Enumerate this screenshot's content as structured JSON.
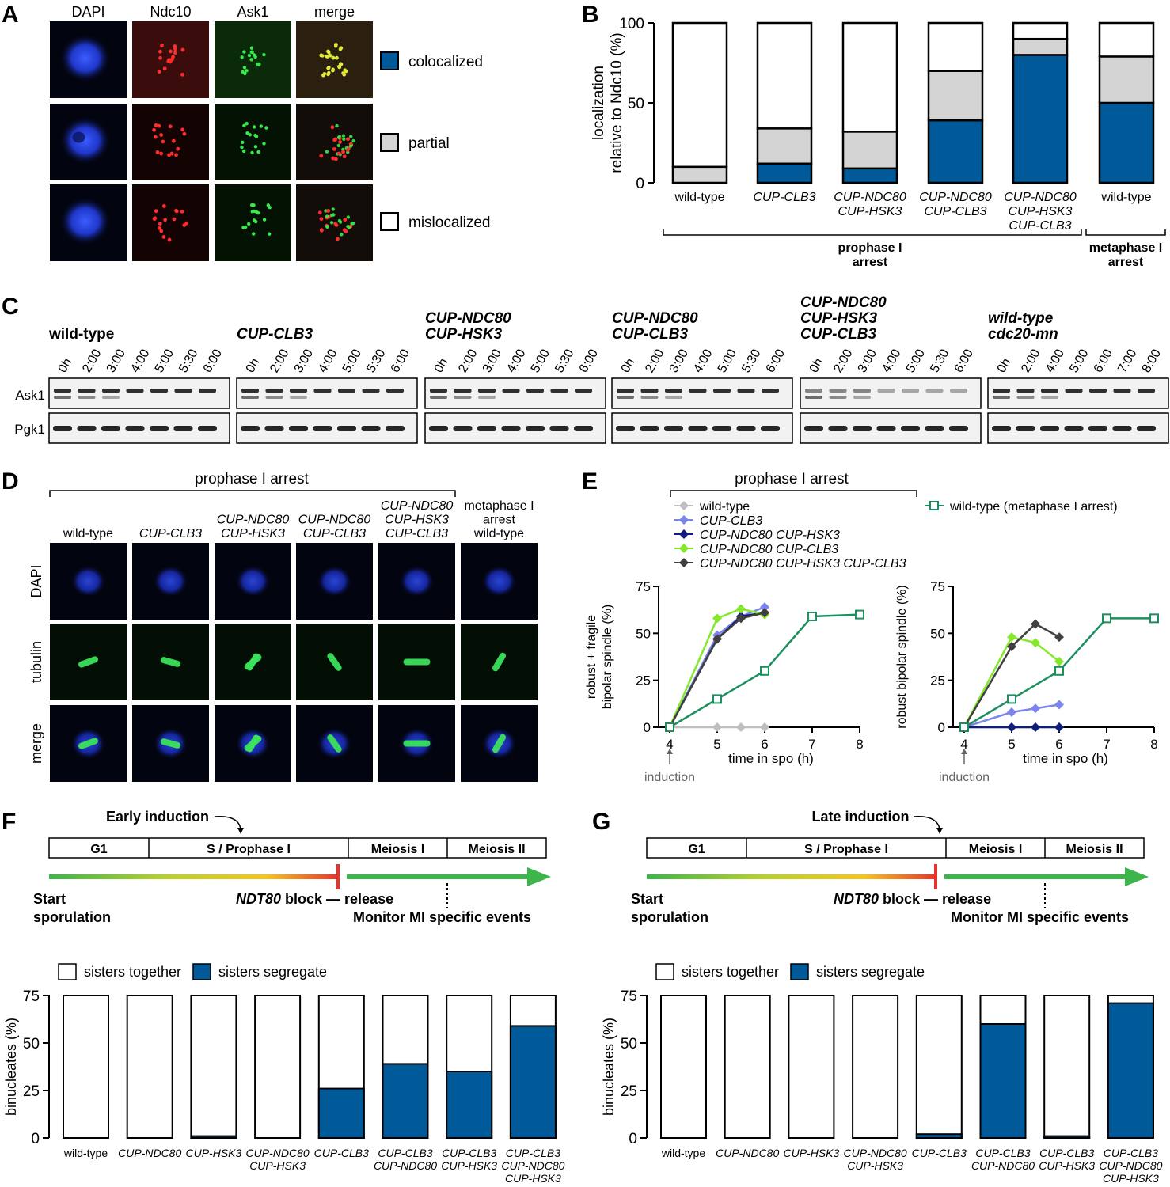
{
  "panels": {
    "A": "A",
    "B": "B",
    "C": "C",
    "D": "D",
    "E": "E",
    "F": "F",
    "G": "G"
  },
  "panelA": {
    "channels": [
      "DAPI",
      "Ndc10",
      "Ask1",
      "merge"
    ],
    "legend": [
      {
        "label": "colocalized",
        "color": "#005a9a"
      },
      {
        "label": "partial",
        "color": "#d4d4d4"
      },
      {
        "label": "mislocalized",
        "color": "#ffffff"
      }
    ]
  },
  "panelB": {
    "ylabel1": "localization",
    "ylabel2": "relative to Ndc10 (%)",
    "group1": [
      "prophase I",
      "arrest"
    ],
    "group2": [
      "metaphase I",
      "arrest"
    ]
  },
  "panelC": {
    "groups": [
      {
        "title": [
          "wild-type"
        ],
        "italic": false,
        "times": [
          "0h",
          "2:00",
          "3:00",
          "4:00",
          "5:00",
          "5:30",
          "6:00"
        ]
      },
      {
        "title": [
          "CUP-CLB3"
        ],
        "italic": true,
        "times": [
          "0h",
          "2:00",
          "3:00",
          "4:00",
          "5:00",
          "5:30",
          "6:00"
        ]
      },
      {
        "title": [
          "CUP-NDC80",
          "CUP-HSK3"
        ],
        "italic": true,
        "times": [
          "0h",
          "2:00",
          "3:00",
          "4:00",
          "5:00",
          "5:30",
          "6:00"
        ]
      },
      {
        "title": [
          "CUP-NDC80",
          "CUP-CLB3"
        ],
        "italic": true,
        "times": [
          "0h",
          "2:00",
          "3:00",
          "4:00",
          "5:00",
          "5:30",
          "6:00"
        ]
      },
      {
        "title": [
          "CUP-NDC80",
          "CUP-HSK3",
          "CUP-CLB3"
        ],
        "italic": true,
        "times": [
          "0h",
          "2:00",
          "3:00",
          "4:00",
          "5:00",
          "5:30",
          "6:00"
        ]
      },
      {
        "title": [
          "wild-type",
          "cdc20-mn"
        ],
        "italic": true,
        "times": [
          "0h",
          "2:00",
          "4:00",
          "5:00",
          "6:00",
          "7:00",
          "8:00"
        ]
      }
    ],
    "rows": [
      "Ask1",
      "Pgk1"
    ]
  },
  "panelD": {
    "header": "prophase I arrest",
    "columns": [
      {
        "lines": [
          "wild-type"
        ],
        "italic": false
      },
      {
        "lines": [
          "CUP-CLB3"
        ],
        "italic": true
      },
      {
        "lines": [
          "CUP-NDC80",
          "CUP-HSK3"
        ],
        "italic": true
      },
      {
        "lines": [
          "CUP-NDC80",
          "CUP-CLB3"
        ],
        "italic": true
      },
      {
        "lines": [
          "CUP-NDC80",
          "CUP-HSK3",
          "CUP-CLB3"
        ],
        "italic": true
      },
      {
        "lines": [
          "metaphase I",
          "arrest",
          "wild-type"
        ],
        "italic": false
      }
    ],
    "rows": [
      "DAPI",
      "tubulin",
      "merge"
    ]
  },
  "panelE": {
    "header": "prophase I arrest",
    "legend": [
      {
        "label": "wild-type",
        "italic": false
      },
      {
        "label": "CUP-CLB3",
        "italic": true
      },
      {
        "label": "CUP-NDC80 CUP-HSK3",
        "italic": true
      },
      {
        "label": "CUP-NDC80 CUP-CLB3",
        "italic": true
      },
      {
        "label": "CUP-NDC80 CUP-HSK3 CUP-CLB3",
        "italic": true
      },
      {
        "label": "wild-type (metaphase I arrest)",
        "italic": false
      }
    ],
    "induction": "induction",
    "xlabel": "time in spo (h)"
  },
  "timelines": {
    "F": {
      "induction": "Early induction"
    },
    "G": {
      "induction": "Late induction"
    },
    "phases": [
      "G1",
      "S / Prophase I",
      "Meiosis I",
      "Meiosis II"
    ],
    "start": [
      "Start",
      "sporulation"
    ],
    "block_gene": "NDT80",
    "block_rest": " block — release",
    "monitor": "Monitor MI specific events",
    "legend": [
      {
        "label": "sisters together",
        "color": "#ffffff"
      },
      {
        "label": "sisters segregate",
        "color": "#005a9a"
      }
    ]
  },
  "chart_data": [
    {
      "type": "bar",
      "stacked": true,
      "panel": "B",
      "categories": [
        [
          "wild-type"
        ],
        [
          "CUP-CLB3"
        ],
        [
          "CUP-NDC80",
          "CUP-HSK3"
        ],
        [
          "CUP-NDC80",
          "CUP-CLB3"
        ],
        [
          "CUP-NDC80",
          "CUP-HSK3",
          "CUP-CLB3"
        ],
        [
          "wild-type"
        ]
      ],
      "categories_italic": [
        false,
        true,
        true,
        true,
        true,
        false
      ],
      "series": [
        {
          "name": "colocalized",
          "color": "#005a9a",
          "values": [
            0,
            12,
            9,
            39,
            80,
            50
          ]
        },
        {
          "name": "partial",
          "color": "#d4d4d4",
          "values": [
            10,
            22,
            23,
            31,
            10,
            29
          ]
        },
        {
          "name": "mislocalized",
          "color": "#ffffff",
          "values": [
            90,
            66,
            68,
            30,
            10,
            21
          ]
        }
      ],
      "ylim": [
        0,
        100
      ],
      "yticks": [
        0,
        50,
        100
      ],
      "ylabel": "localization relative to Ndc10 (%)",
      "grid": false
    },
    {
      "type": "line",
      "panel": "E-left",
      "ylabel": "robust + fragile bipolar spindle (%)",
      "xlabel": "time in spo (h)",
      "xlim": [
        4,
        8
      ],
      "ylim": [
        0,
        75
      ],
      "xticks": [
        4,
        5,
        6,
        7,
        8
      ],
      "yticks": [
        0,
        25,
        50,
        75
      ],
      "series": [
        {
          "name": "wild-type",
          "color": "#bfbfbf",
          "marker": "diamond",
          "x": [
            4,
            5,
            5.5,
            6
          ],
          "y": [
            0,
            0,
            0,
            0
          ]
        },
        {
          "name": "CUP-CLB3",
          "color": "#7b85ec",
          "marker": "diamond",
          "x": [
            4,
            5,
            5.5,
            6
          ],
          "y": [
            0,
            49,
            59,
            64
          ]
        },
        {
          "name": "CUP-NDC80 CUP-HSK3",
          "color": "#0f1e78",
          "marker": "diamond",
          "x": [
            4,
            5,
            5.5,
            6
          ],
          "y": [
            0,
            47,
            59,
            61
          ]
        },
        {
          "name": "CUP-NDC80 CUP-CLB3",
          "color": "#86e82c",
          "marker": "diamond",
          "x": [
            4,
            5,
            5.5,
            6
          ],
          "y": [
            0,
            58,
            63,
            60
          ]
        },
        {
          "name": "CUP-NDC80 CUP-HSK3 CUP-CLB3",
          "color": "#404040",
          "marker": "diamond",
          "x": [
            4,
            5,
            5.5,
            6
          ],
          "y": [
            0,
            47,
            58,
            61
          ]
        },
        {
          "name": "wild-type (metaphase I arrest)",
          "color": "#1b8f5d",
          "marker": "square-open",
          "x": [
            4,
            5,
            6,
            7,
            8
          ],
          "y": [
            0,
            15,
            30,
            59,
            60
          ]
        }
      ]
    },
    {
      "type": "line",
      "panel": "E-right",
      "ylabel": "robust bipolar spindle (%)",
      "xlabel": "time in spo (h)",
      "xlim": [
        4,
        8
      ],
      "ylim": [
        0,
        75
      ],
      "xticks": [
        4,
        5,
        6,
        7,
        8
      ],
      "yticks": [
        0,
        25,
        50,
        75
      ],
      "series": [
        {
          "name": "wild-type",
          "color": "#bfbfbf",
          "marker": "diamond",
          "x": [
            4,
            5,
            5.5,
            6
          ],
          "y": [
            0,
            0,
            0,
            0
          ]
        },
        {
          "name": "CUP-CLB3",
          "color": "#7b85ec",
          "marker": "diamond",
          "x": [
            4,
            5,
            5.5,
            6
          ],
          "y": [
            0,
            8,
            10,
            12
          ]
        },
        {
          "name": "CUP-NDC80 CUP-HSK3",
          "color": "#0f1e78",
          "marker": "diamond",
          "x": [
            4,
            5,
            5.5,
            6
          ],
          "y": [
            0,
            0,
            0,
            0
          ]
        },
        {
          "name": "CUP-NDC80 CUP-CLB3",
          "color": "#86e82c",
          "marker": "diamond",
          "x": [
            4,
            5,
            5.5,
            6
          ],
          "y": [
            0,
            48,
            45,
            35
          ]
        },
        {
          "name": "CUP-NDC80 CUP-HSK3 CUP-CLB3",
          "color": "#404040",
          "marker": "diamond",
          "x": [
            4,
            5,
            5.5,
            6
          ],
          "y": [
            0,
            43,
            55,
            48
          ]
        },
        {
          "name": "wild-type (metaphase I arrest)",
          "color": "#1b8f5d",
          "marker": "square-open",
          "x": [
            4,
            5,
            6,
            7,
            8
          ],
          "y": [
            0,
            15,
            30,
            58,
            58
          ]
        }
      ]
    },
    {
      "type": "bar",
      "panel": "F",
      "categories": [
        [
          "wild-type"
        ],
        [
          "CUP-NDC80"
        ],
        [
          "CUP-HSK3"
        ],
        [
          "CUP-NDC80",
          "CUP-HSK3"
        ],
        [
          "CUP-CLB3"
        ],
        [
          "CUP-CLB3",
          "CUP-NDC80"
        ],
        [
          "CUP-CLB3",
          "CUP-HSK3"
        ],
        [
          "CUP-CLB3",
          "CUP-NDC80",
          "CUP-HSK3"
        ]
      ],
      "categories_italic": [
        false,
        true,
        true,
        true,
        true,
        true,
        true,
        true
      ],
      "series": [
        {
          "name": "sisters segregate",
          "color": "#005a9a",
          "values": [
            0,
            0,
            1,
            0,
            26,
            39,
            35,
            59
          ]
        }
      ],
      "ylim": [
        0,
        75
      ],
      "yticks": [
        0,
        25,
        50,
        75
      ],
      "ylabel": "binucleates (%)"
    },
    {
      "type": "bar",
      "panel": "G",
      "categories": [
        [
          "wild-type"
        ],
        [
          "CUP-NDC80"
        ],
        [
          "CUP-HSK3"
        ],
        [
          "CUP-NDC80",
          "CUP-HSK3"
        ],
        [
          "CUP-CLB3"
        ],
        [
          "CUP-CLB3",
          "CUP-NDC80"
        ],
        [
          "CUP-CLB3",
          "CUP-HSK3"
        ],
        [
          "CUP-CLB3",
          "CUP-NDC80",
          "CUP-HSK3"
        ]
      ],
      "categories_italic": [
        false,
        true,
        true,
        true,
        true,
        true,
        true,
        true
      ],
      "series": [
        {
          "name": "sisters segregate",
          "color": "#005a9a",
          "values": [
            0,
            0,
            0,
            0,
            2,
            60,
            1,
            71
          ]
        }
      ],
      "ylim": [
        0,
        75
      ],
      "yticks": [
        0,
        25,
        50,
        75
      ],
      "ylabel": "binucleates (%)"
    }
  ]
}
